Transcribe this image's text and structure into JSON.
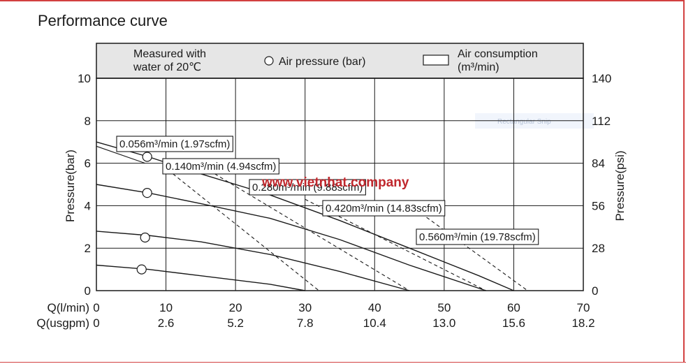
{
  "chart_data": {
    "type": "line",
    "title": "Performance curve",
    "ylabel": "Pressure(bar)",
    "y2label": "Pressure(psi)",
    "x_primary_label": "Q(l/min)",
    "x_secondary_label": "Q(usgpm)",
    "x_ticks": [
      0,
      10,
      20,
      30,
      40,
      50,
      60,
      70
    ],
    "x_secondary_ticks": [
      "0",
      "2.6",
      "5.2",
      "7.8",
      "10.4",
      "13.0",
      "15.6",
      "18.2"
    ],
    "xlim": [
      0,
      70
    ],
    "ylim": [
      0,
      10
    ],
    "y_ticks": [
      0,
      2,
      4,
      6,
      8,
      10
    ],
    "y2_ticks": [
      0,
      28,
      56,
      84,
      112,
      140
    ],
    "grid": true,
    "legend": {
      "measured_line1": "Measured with",
      "measured_line2": "water of 20℃",
      "air_pressure": "Air pressure (bar)",
      "air_consumption_line1": "Air consumption",
      "air_consumption_line2": "(m³/min)"
    },
    "series": [
      {
        "air_pressure_bar": 7,
        "points": [
          [
            0,
            7.0
          ],
          [
            7.5,
            6.3
          ],
          [
            15,
            5.5
          ],
          [
            25,
            4.5
          ],
          [
            35,
            3.3
          ],
          [
            45,
            2.0
          ],
          [
            55,
            0.7
          ],
          [
            60,
            0
          ]
        ]
      },
      {
        "air_pressure_bar": 5,
        "points": [
          [
            0,
            5.0
          ],
          [
            7.5,
            4.6
          ],
          [
            15,
            4.1
          ],
          [
            25,
            3.4
          ],
          [
            35,
            2.4
          ],
          [
            45,
            1.2
          ],
          [
            56,
            0
          ]
        ]
      },
      {
        "air_pressure_bar": 3,
        "points": [
          [
            0,
            2.8
          ],
          [
            7.5,
            2.6
          ],
          [
            15,
            2.3
          ],
          [
            25,
            1.7
          ],
          [
            35,
            0.9
          ],
          [
            45,
            0
          ]
        ]
      },
      {
        "air_pressure_bar": 1,
        "points": [
          [
            0,
            1.2
          ],
          [
            7.5,
            1.0
          ],
          [
            15,
            0.7
          ],
          [
            25,
            0.3
          ],
          [
            30,
            0
          ]
        ]
      }
    ],
    "air_pressure_markers": [
      [
        7.3,
        6.3
      ],
      [
        7.3,
        4.6
      ],
      [
        7.0,
        2.5
      ],
      [
        6.5,
        1.0
      ]
    ],
    "consumption_lines": [
      {
        "label": "0.056m³/min (1.97scfm)",
        "points": [
          [
            0,
            6.8
          ],
          [
            7,
            6.0
          ]
        ]
      },
      {
        "label": "0.140m³/min (4.94scfm)",
        "points": [
          [
            11,
            5.5
          ],
          [
            32,
            0
          ]
        ]
      },
      {
        "label": "0.280m³/min (9.88scfm)",
        "points": [
          [
            17,
            5.5
          ],
          [
            45,
            0
          ]
        ]
      },
      {
        "label": "0.420m³/min (14.83scfm)",
        "points": [
          [
            30,
            4.3
          ],
          [
            56,
            0
          ]
        ]
      },
      {
        "label": "0.560m³/min (19.78scfm)",
        "points": [
          [
            46,
            3.8
          ],
          [
            62,
            0
          ]
        ]
      }
    ]
  },
  "watermark": "www.vietnhat.company",
  "overlay_faint": "Rectangular Snip",
  "colors": {
    "header_band": "#e6e6e6",
    "line": "#1a1a1a",
    "watermark": "#c0282d",
    "frame": "#d24040"
  }
}
